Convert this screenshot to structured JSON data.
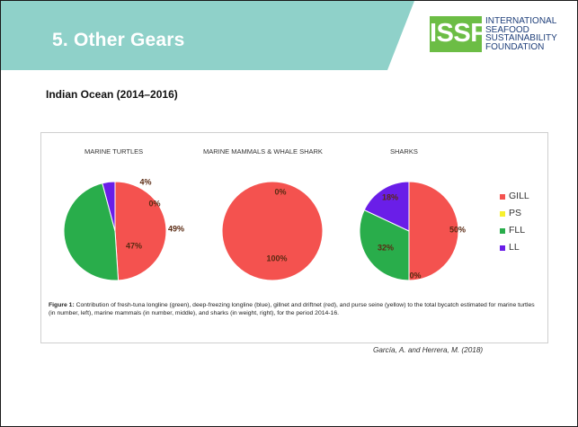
{
  "slide": {
    "title": "5.  Other Gears",
    "subtitle": "Indian Ocean (2014–2016)",
    "header_color": "#8fd1c9",
    "logo": {
      "letters": "ISSF",
      "lines": [
        "INTERNATIONAL",
        "SEAFOOD",
        "SUSTAINABILITY",
        "FOUNDATION"
      ],
      "box_color": "#6cbd45",
      "text_color": "#1f3f7a"
    },
    "citation": "García, A. and Herrera, M. (2018)"
  },
  "figure": {
    "caption_label": "Figure 1:",
    "caption_text": " Contribution of fresh-tuna longline (green), deep-freezing longline (blue), gillnet and driftnet (red), and purse seine (yellow) to the total bycatch estimated for marine turtles (in number, left), marine mammals (in number, middle), and sharks (in weight, right), for the period 2014-16."
  },
  "chart_data": {
    "type": "pie",
    "categories": [
      "GILL",
      "PS",
      "FLL",
      "LL"
    ],
    "colors": [
      "#f4524f",
      "#f7f02d",
      "#29ad4b",
      "#6a1ee8"
    ],
    "legend_position": "right",
    "charts": [
      {
        "title": "MARINE TURTLES",
        "values": [
          49,
          0,
          47,
          4
        ],
        "labels": [
          {
            "text": "49%",
            "category": "GILL"
          },
          {
            "text": "0%",
            "category": "PS"
          },
          {
            "text": "47%",
            "category": "FLL"
          },
          {
            "text": "4%",
            "category": "LL"
          }
        ]
      },
      {
        "title": "MARINE MAMMALS & WHALE SHARK",
        "values": [
          100,
          0,
          0,
          0
        ],
        "labels": [
          {
            "text": "100%",
            "category": "GILL"
          },
          {
            "text": "0%",
            "category": "PS"
          }
        ]
      },
      {
        "title": "SHARKS",
        "values": [
          50,
          0,
          32,
          18
        ],
        "labels": [
          {
            "text": "50%",
            "category": "GILL"
          },
          {
            "text": "0%",
            "category": "PS"
          },
          {
            "text": "32%",
            "category": "FLL"
          },
          {
            "text": "18%",
            "category": "LL"
          }
        ]
      }
    ]
  }
}
